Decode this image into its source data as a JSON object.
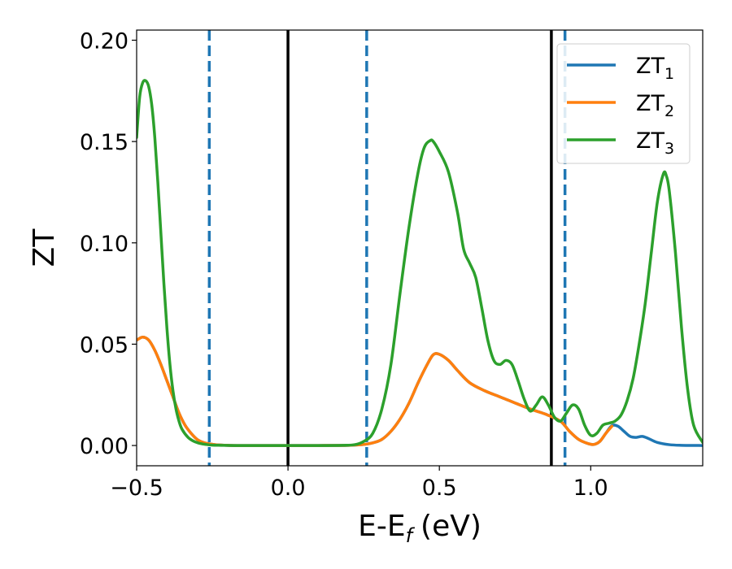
{
  "chart_data": {
    "type": "line",
    "xlabel": "E-E",
    "xlabel_sub": "f",
    "xlabel_unit": "(eV)",
    "ylabel": "ZT",
    "xlim": [
      -0.5,
      1.37
    ],
    "ylim": [
      -0.01,
      0.205
    ],
    "xticks": [
      -0.5,
      0.0,
      0.5,
      1.0
    ],
    "xtick_labels": [
      "−0.5",
      "0.0",
      "0.5",
      "1.0"
    ],
    "yticks": [
      0.0,
      0.05,
      0.1,
      0.15,
      0.2
    ],
    "ytick_labels": [
      "0.00",
      "0.05",
      "0.10",
      "0.15",
      "0.20"
    ],
    "grid": false,
    "legend_position": "top-right",
    "vlines_solid": [
      0.0,
      0.87
    ],
    "vlines_dashed": [
      -0.26,
      0.26,
      0.915
    ],
    "vline_solid_color": "#000000",
    "vline_dashed_color": "#1f77b4",
    "series": [
      {
        "name": "ZT",
        "subscript": "1",
        "color": "#1f77b4",
        "x": [
          -0.5,
          -0.48,
          -0.46,
          -0.44,
          -0.42,
          -0.4,
          -0.38,
          -0.36,
          -0.34,
          -0.32,
          -0.3,
          -0.28,
          -0.26,
          -0.24,
          -0.2,
          -0.15,
          -0.1,
          0.0,
          0.1,
          0.2,
          0.25,
          0.28,
          0.31,
          0.34,
          0.37,
          0.4,
          0.43,
          0.46,
          0.48,
          0.5,
          0.53,
          0.56,
          0.6,
          0.65,
          0.7,
          0.75,
          0.8,
          0.85,
          0.9,
          0.93,
          0.96,
          0.99,
          1.01,
          1.03,
          1.05,
          1.07,
          1.09,
          1.11,
          1.13,
          1.15,
          1.17,
          1.19,
          1.22,
          1.26,
          1.3,
          1.37
        ],
        "y": [
          0.052,
          0.0535,
          0.052,
          0.047,
          0.04,
          0.032,
          0.024,
          0.016,
          0.01,
          0.006,
          0.003,
          0.0015,
          0.0008,
          0.0004,
          0.0001,
          0.0,
          0.0,
          0.0,
          0.0,
          0.0001,
          0.0005,
          0.0013,
          0.003,
          0.007,
          0.013,
          0.021,
          0.031,
          0.04,
          0.0448,
          0.045,
          0.042,
          0.037,
          0.031,
          0.027,
          0.024,
          0.021,
          0.018,
          0.0155,
          0.012,
          0.007,
          0.003,
          0.001,
          0.0005,
          0.002,
          0.006,
          0.0098,
          0.0095,
          0.007,
          0.0045,
          0.004,
          0.0045,
          0.0035,
          0.0015,
          0.0004,
          0.0001,
          0.0
        ]
      },
      {
        "name": "ZT",
        "subscript": "2",
        "color": "#ff7f0e",
        "x": [
          -0.5,
          -0.48,
          -0.46,
          -0.44,
          -0.42,
          -0.4,
          -0.38,
          -0.36,
          -0.34,
          -0.32,
          -0.3,
          -0.28,
          -0.26,
          -0.24,
          -0.2,
          -0.15,
          -0.1,
          0.0,
          0.1,
          0.2,
          0.25,
          0.28,
          0.31,
          0.34,
          0.37,
          0.4,
          0.43,
          0.46,
          0.48,
          0.5,
          0.53,
          0.56,
          0.6,
          0.65,
          0.7,
          0.75,
          0.8,
          0.85,
          0.9,
          0.93,
          0.96,
          0.99,
          1.01,
          1.03,
          1.05,
          1.07
        ],
        "y": [
          0.052,
          0.0535,
          0.052,
          0.047,
          0.04,
          0.032,
          0.024,
          0.016,
          0.01,
          0.006,
          0.003,
          0.0015,
          0.0008,
          0.0004,
          0.0001,
          0.0,
          0.0,
          0.0,
          0.0,
          0.0001,
          0.0005,
          0.0013,
          0.003,
          0.007,
          0.013,
          0.021,
          0.031,
          0.04,
          0.0448,
          0.045,
          0.042,
          0.037,
          0.031,
          0.027,
          0.024,
          0.021,
          0.018,
          0.0155,
          0.012,
          0.007,
          0.003,
          0.001,
          0.0005,
          0.002,
          0.006,
          0.0095
        ]
      },
      {
        "name": "ZT",
        "subscript": "3",
        "color": "#2ca02c",
        "x": [
          -0.5,
          -0.49,
          -0.48,
          -0.47,
          -0.46,
          -0.45,
          -0.44,
          -0.43,
          -0.42,
          -0.41,
          -0.4,
          -0.39,
          -0.38,
          -0.37,
          -0.36,
          -0.35,
          -0.33,
          -0.31,
          -0.29,
          -0.27,
          -0.25,
          -0.22,
          -0.18,
          -0.1,
          0.0,
          0.1,
          0.18,
          0.22,
          0.25,
          0.28,
          0.31,
          0.34,
          0.37,
          0.4,
          0.43,
          0.45,
          0.47,
          0.48,
          0.5,
          0.53,
          0.56,
          0.58,
          0.6,
          0.62,
          0.64,
          0.66,
          0.68,
          0.7,
          0.72,
          0.74,
          0.76,
          0.78,
          0.8,
          0.82,
          0.84,
          0.86,
          0.88,
          0.9,
          0.92,
          0.94,
          0.96,
          0.98,
          1.0,
          1.02,
          1.04,
          1.06,
          1.08,
          1.1,
          1.12,
          1.14,
          1.16,
          1.18,
          1.2,
          1.22,
          1.24,
          1.25,
          1.26,
          1.28,
          1.3,
          1.32,
          1.34,
          1.37
        ],
        "y": [
          0.152,
          0.172,
          0.179,
          0.18,
          0.177,
          0.168,
          0.152,
          0.13,
          0.105,
          0.08,
          0.058,
          0.04,
          0.027,
          0.018,
          0.012,
          0.008,
          0.004,
          0.002,
          0.001,
          0.0005,
          0.0002,
          0.0001,
          0.0,
          0.0,
          0.0,
          0.0,
          0.0001,
          0.0004,
          0.002,
          0.006,
          0.018,
          0.04,
          0.075,
          0.108,
          0.135,
          0.147,
          0.1505,
          0.15,
          0.145,
          0.135,
          0.115,
          0.097,
          0.09,
          0.083,
          0.068,
          0.052,
          0.042,
          0.04,
          0.042,
          0.04,
          0.032,
          0.023,
          0.017,
          0.02,
          0.024,
          0.02,
          0.014,
          0.012,
          0.016,
          0.02,
          0.018,
          0.01,
          0.005,
          0.006,
          0.01,
          0.011,
          0.012,
          0.015,
          0.022,
          0.033,
          0.05,
          0.07,
          0.095,
          0.12,
          0.134,
          0.133,
          0.125,
          0.095,
          0.058,
          0.028,
          0.01,
          0.0015
        ]
      }
    ]
  }
}
